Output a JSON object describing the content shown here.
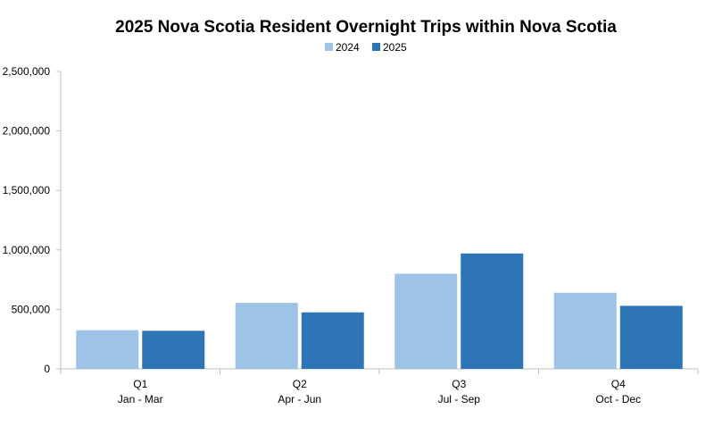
{
  "chart_data": {
    "type": "bar",
    "title": "2025 Nova Scotia Resident Overnight Trips within Nova Scotia",
    "categories": [
      "Q1",
      "Q2",
      "Q3",
      "Q4"
    ],
    "category_sublabels": [
      "Jan - Mar",
      "Apr - Jun",
      "Jul - Sep",
      "Oct - Dec"
    ],
    "series": [
      {
        "name": "2024",
        "color": "#9DC3E6",
        "values": [
          325000,
          555000,
          800000,
          640000
        ]
      },
      {
        "name": "2025",
        "color": "#2E75B6",
        "values": [
          320000,
          475000,
          970000,
          530000
        ]
      }
    ],
    "ylim": [
      0,
      2500000
    ],
    "yticks": [
      0,
      500000,
      1000000,
      1500000,
      2000000,
      2500000
    ],
    "ytick_labels": [
      "0",
      "500,000",
      "1,000,000",
      "1,500,000",
      "2,000,000",
      "2,500,000"
    ],
    "grid": false,
    "legend_position": "top-center",
    "axis_color": "#BFBFBF"
  }
}
